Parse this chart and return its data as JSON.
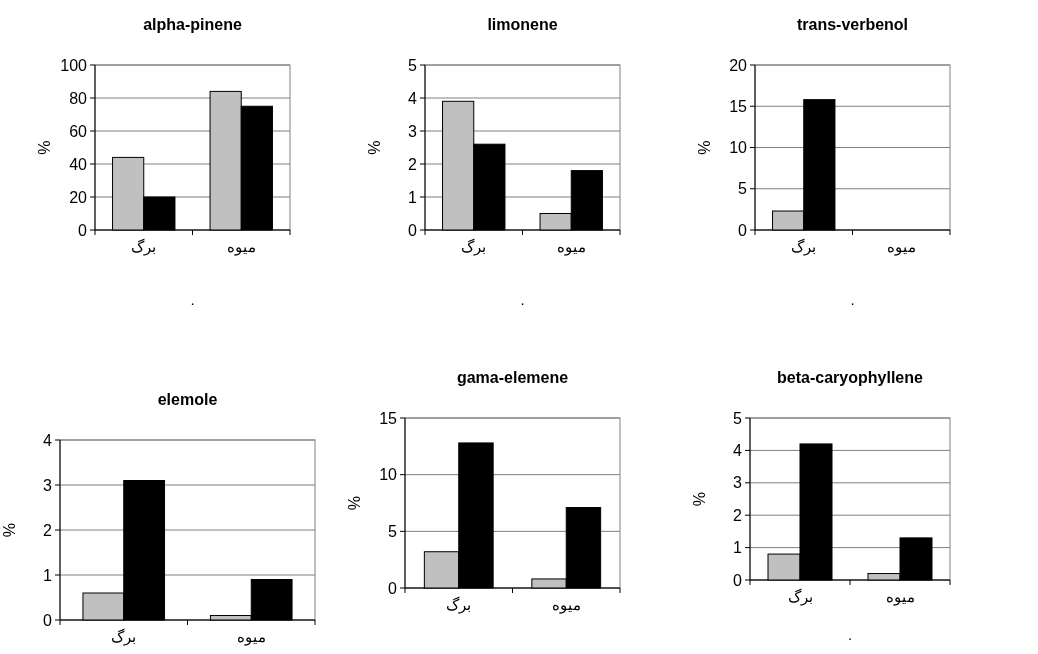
{
  "chart_data": [
    {
      "type": "bar",
      "title": "alpha-pinene",
      "ylabel": "%",
      "categories": [
        "برگ",
        "میوه"
      ],
      "ylim": [
        0,
        100
      ],
      "yticks": [
        0,
        20,
        40,
        60,
        80,
        100
      ],
      "grid": "y",
      "annotations": [
        "."
      ],
      "series": [
        {
          "color": "#c0c0c0",
          "values": [
            44,
            84
          ]
        },
        {
          "color": "#000000",
          "values": [
            20,
            75
          ]
        }
      ]
    },
    {
      "type": "bar",
      "title": "limonene",
      "ylabel": "%",
      "categories": [
        "برگ",
        "میوه"
      ],
      "ylim": [
        0,
        5
      ],
      "yticks": [
        0,
        1,
        2,
        3,
        4,
        5
      ],
      "grid": "y",
      "annotations": [
        "."
      ],
      "series": [
        {
          "color": "#c0c0c0",
          "values": [
            3.9,
            0.5
          ]
        },
        {
          "color": "#000000",
          "values": [
            2.6,
            1.8
          ]
        }
      ]
    },
    {
      "type": "bar",
      "title": "trans-verbenol",
      "ylabel": "%",
      "categories": [
        "برگ",
        "میوه"
      ],
      "ylim": [
        0,
        20
      ],
      "yticks": [
        0,
        5,
        10,
        15,
        20
      ],
      "grid": "y",
      "annotations": [
        "."
      ],
      "series": [
        {
          "color": "#c0c0c0",
          "values": [
            2.3,
            0
          ]
        },
        {
          "color": "#000000",
          "values": [
            15.8,
            0
          ]
        }
      ]
    },
    {
      "type": "bar",
      "title": "elemole",
      "ylabel": "%",
      "categories": [
        "برگ",
        "میوه"
      ],
      "ylim": [
        0,
        4
      ],
      "yticks": [
        0,
        1,
        2,
        3,
        4
      ],
      "grid": "y",
      "series": [
        {
          "color": "#c0c0c0",
          "values": [
            0.6,
            0.1
          ]
        },
        {
          "color": "#000000",
          "values": [
            3.1,
            0.9
          ]
        }
      ]
    },
    {
      "type": "bar",
      "title": "gama-elemene",
      "ylabel": "%",
      "categories": [
        "برگ",
        "میوه"
      ],
      "ylim": [
        0,
        15
      ],
      "yticks": [
        0,
        5,
        10,
        15
      ],
      "grid": "y",
      "series": [
        {
          "color": "#c0c0c0",
          "values": [
            3.2,
            0.8
          ]
        },
        {
          "color": "#000000",
          "values": [
            12.8,
            7.1
          ]
        }
      ]
    },
    {
      "type": "bar",
      "title": "beta-caryophyllene",
      "ylabel": "%",
      "categories": [
        "برگ",
        "میوه"
      ],
      "ylim": [
        0,
        5
      ],
      "yticks": [
        0,
        1,
        2,
        3,
        4,
        5
      ],
      "grid": "y",
      "annotations": [
        "."
      ],
      "series": [
        {
          "color": "#c0c0c0",
          "values": [
            0.8,
            0.2
          ]
        },
        {
          "color": "#000000",
          "values": [
            4.2,
            1.3
          ]
        }
      ]
    }
  ]
}
